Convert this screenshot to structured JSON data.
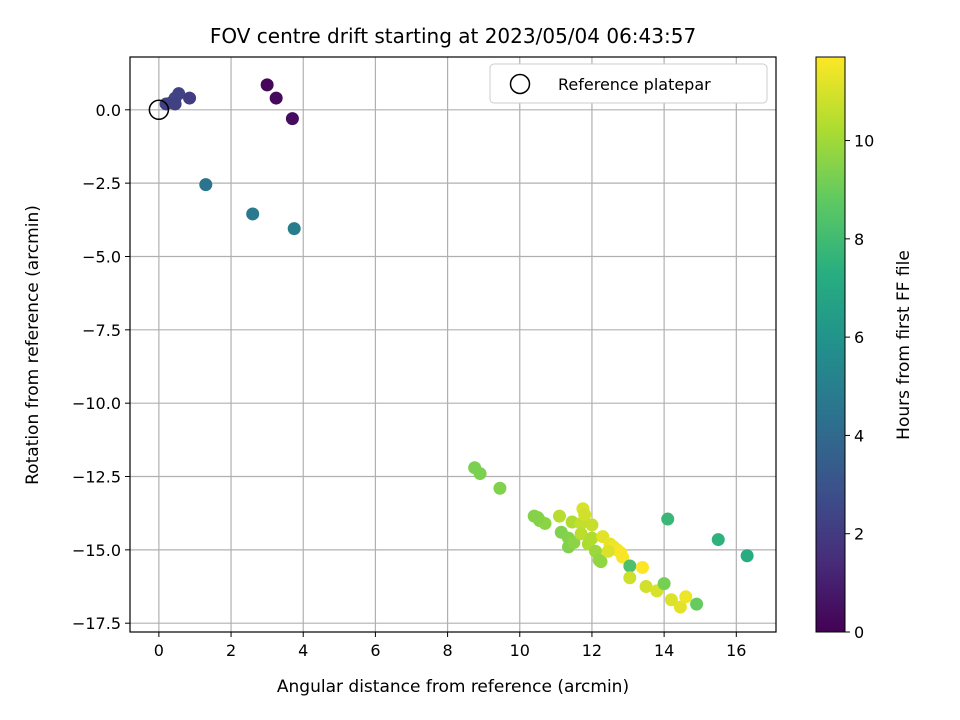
{
  "chart_data": {
    "type": "scatter",
    "title": "FOV centre drift starting at 2023/05/04 06:43:57",
    "xlabel": "Angular distance from reference (arcmin)",
    "ylabel": "Rotation from reference (arcmin)",
    "xlim": [
      -0.8,
      17.1
    ],
    "ylim": [
      -17.8,
      1.8
    ],
    "xticks": [
      0,
      2,
      4,
      6,
      8,
      10,
      12,
      14,
      16
    ],
    "yticks": [
      0.0,
      -2.5,
      -5.0,
      -7.5,
      -10.0,
      -12.5,
      -15.0,
      -17.5
    ],
    "grid": true,
    "legend": {
      "placement": "top-right",
      "label": "Reference platepar"
    },
    "colorbar": {
      "label": "Hours from first FF file",
      "range": [
        0,
        11.7
      ],
      "ticks": [
        0,
        2,
        4,
        6,
        8,
        10
      ],
      "colormap": "viridis"
    },
    "reference_point": {
      "x": 0,
      "y": 0
    },
    "points": [
      {
        "x": 0.2,
        "y": 0.2,
        "c": 2.2
      },
      {
        "x": 0.35,
        "y": 0.25,
        "c": 2.3
      },
      {
        "x": 0.45,
        "y": 0.4,
        "c": 2.4
      },
      {
        "x": 0.55,
        "y": 0.55,
        "c": 2.3
      },
      {
        "x": 0.45,
        "y": 0.2,
        "c": 2.2
      },
      {
        "x": 0.85,
        "y": 0.4,
        "c": 2.1
      },
      {
        "x": 3.0,
        "y": 0.85,
        "c": 0.2
      },
      {
        "x": 3.25,
        "y": 0.4,
        "c": 0.3
      },
      {
        "x": 3.7,
        "y": -0.3,
        "c": 0.4
      },
      {
        "x": 1.3,
        "y": -2.55,
        "c": 4.5
      },
      {
        "x": 2.6,
        "y": -3.55,
        "c": 4.7
      },
      {
        "x": 3.75,
        "y": -4.05,
        "c": 4.9
      },
      {
        "x": 8.75,
        "y": -12.2,
        "c": 9.3
      },
      {
        "x": 8.9,
        "y": -12.4,
        "c": 9.3
      },
      {
        "x": 9.45,
        "y": -12.9,
        "c": 9.4
      },
      {
        "x": 10.4,
        "y": -13.85,
        "c": 9.5
      },
      {
        "x": 10.55,
        "y": -14.0,
        "c": 9.5
      },
      {
        "x": 10.7,
        "y": -14.1,
        "c": 9.6
      },
      {
        "x": 10.5,
        "y": -13.9,
        "c": 9.5
      },
      {
        "x": 11.1,
        "y": -13.85,
        "c": 10.4
      },
      {
        "x": 11.15,
        "y": -14.4,
        "c": 9.4
      },
      {
        "x": 11.35,
        "y": -14.6,
        "c": 9.5
      },
      {
        "x": 11.35,
        "y": -14.9,
        "c": 9.4
      },
      {
        "x": 11.5,
        "y": -14.75,
        "c": 9.6
      },
      {
        "x": 11.45,
        "y": -14.05,
        "c": 10.3
      },
      {
        "x": 11.7,
        "y": -14.1,
        "c": 10.6
      },
      {
        "x": 11.75,
        "y": -13.6,
        "c": 11.0
      },
      {
        "x": 11.8,
        "y": -13.8,
        "c": 10.9
      },
      {
        "x": 11.7,
        "y": -14.45,
        "c": 10.5
      },
      {
        "x": 11.9,
        "y": -14.8,
        "c": 10.2
      },
      {
        "x": 12.0,
        "y": -14.15,
        "c": 10.7
      },
      {
        "x": 12.0,
        "y": -14.6,
        "c": 10.3
      },
      {
        "x": 12.1,
        "y": -15.05,
        "c": 9.9
      },
      {
        "x": 12.2,
        "y": -15.35,
        "c": 9.8
      },
      {
        "x": 12.25,
        "y": -15.4,
        "c": 9.7
      },
      {
        "x": 12.3,
        "y": -14.55,
        "c": 11.2
      },
      {
        "x": 12.5,
        "y": -14.8,
        "c": 11.3
      },
      {
        "x": 12.6,
        "y": -14.9,
        "c": 11.4
      },
      {
        "x": 12.7,
        "y": -15.0,
        "c": 11.5
      },
      {
        "x": 12.8,
        "y": -15.1,
        "c": 11.6
      },
      {
        "x": 12.85,
        "y": -15.25,
        "c": 11.6
      },
      {
        "x": 12.45,
        "y": -15.05,
        "c": 11.1
      },
      {
        "x": 13.05,
        "y": -15.55,
        "c": 8.3
      },
      {
        "x": 13.05,
        "y": -15.95,
        "c": 10.8
      },
      {
        "x": 13.4,
        "y": -15.6,
        "c": 11.7
      },
      {
        "x": 13.5,
        "y": -16.25,
        "c": 10.9
      },
      {
        "x": 13.8,
        "y": -16.4,
        "c": 11.0
      },
      {
        "x": 14.0,
        "y": -16.15,
        "c": 9.2
      },
      {
        "x": 14.2,
        "y": -16.7,
        "c": 11.1
      },
      {
        "x": 14.45,
        "y": -16.95,
        "c": 11.2
      },
      {
        "x": 14.6,
        "y": -16.6,
        "c": 11.4
      },
      {
        "x": 14.9,
        "y": -16.85,
        "c": 8.9
      },
      {
        "x": 14.1,
        "y": -13.95,
        "c": 7.8
      },
      {
        "x": 15.5,
        "y": -14.65,
        "c": 7.5
      },
      {
        "x": 16.3,
        "y": -15.2,
        "c": 7.2
      }
    ]
  }
}
